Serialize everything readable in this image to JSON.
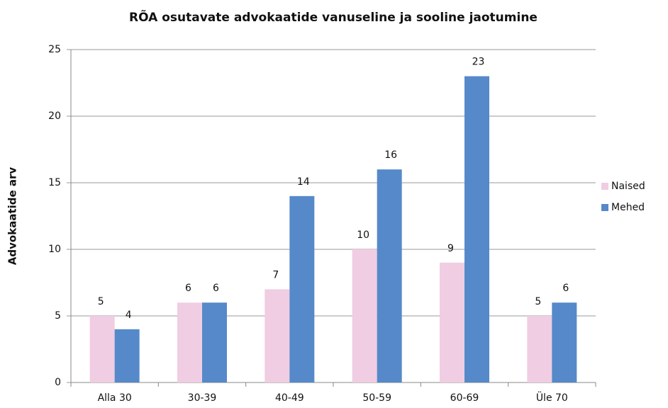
{
  "chart_data": {
    "type": "bar",
    "title": "RÕA osutavate advokaatide vanuseline ja sooline jaotumine",
    "y_label": "Advokaatide arv",
    "categories": [
      "Alla 30",
      "30-39",
      "40-49",
      "50-59",
      "60-69",
      "Üle 70"
    ],
    "series": [
      {
        "name": "Naised",
        "color": "#f0cde2",
        "values": [
          5,
          6,
          7,
          10,
          9,
          5
        ]
      },
      {
        "name": "Mehed",
        "color": "#5689c9",
        "values": [
          4,
          6,
          14,
          16,
          23,
          6
        ]
      }
    ],
    "ylim": [
      0,
      25
    ],
    "yticks": [
      0,
      5,
      10,
      15,
      20,
      25
    ],
    "grid": true,
    "legend": "right"
  }
}
